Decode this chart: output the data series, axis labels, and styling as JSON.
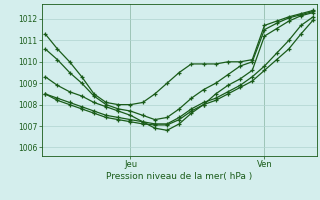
{
  "bg_color": "#d4eeed",
  "grid_color": "#b0d4d0",
  "line_color": "#1a5c1a",
  "title": "Pression niveau de la mer( hPa )",
  "ylabel_ticks": [
    1006,
    1007,
    1008,
    1009,
    1010,
    1011,
    1012
  ],
  "ylim": [
    1005.6,
    1012.7
  ],
  "xlim": [
    -0.3,
    22.3
  ],
  "xtick_positions": [
    7,
    18
  ],
  "xtick_labels": [
    "Jeu",
    "Ven"
  ],
  "n_points": 23,
  "series": [
    [
      1011.3,
      1010.6,
      1010.0,
      1009.3,
      1008.5,
      1008.1,
      1008.0,
      1008.0,
      1008.1,
      1008.5,
      1009.0,
      1009.5,
      1009.9,
      1009.9,
      1009.9,
      1010.0,
      1010.0,
      1010.1,
      1011.7,
      1011.9,
      1012.1,
      1012.25,
      1012.4
    ],
    [
      1010.6,
      1010.1,
      1009.5,
      1009.0,
      1008.4,
      1008.0,
      1007.8,
      1007.7,
      1007.5,
      1007.3,
      1007.4,
      1007.8,
      1008.3,
      1008.7,
      1009.0,
      1009.4,
      1009.8,
      1010.0,
      1011.5,
      1011.8,
      1012.05,
      1012.2,
      1012.35
    ],
    [
      1009.3,
      1008.9,
      1008.6,
      1008.4,
      1008.1,
      1007.9,
      1007.7,
      1007.5,
      1007.2,
      1006.9,
      1006.8,
      1007.1,
      1007.6,
      1008.0,
      1008.5,
      1008.9,
      1009.2,
      1009.6,
      1011.2,
      1011.55,
      1011.9,
      1012.15,
      1012.3
    ],
    [
      1008.5,
      1008.3,
      1008.1,
      1007.9,
      1007.7,
      1007.5,
      1007.4,
      1007.3,
      1007.2,
      1007.1,
      1007.1,
      1007.4,
      1007.8,
      1008.1,
      1008.3,
      1008.6,
      1008.9,
      1009.3,
      1009.8,
      1010.4,
      1011.0,
      1011.7,
      1012.1
    ],
    [
      1008.5,
      1008.2,
      1008.0,
      1007.8,
      1007.6,
      1007.4,
      1007.3,
      1007.2,
      1007.1,
      1007.05,
      1007.05,
      1007.3,
      1007.7,
      1008.0,
      1008.2,
      1008.5,
      1008.8,
      1009.1,
      1009.6,
      1010.1,
      1010.6,
      1011.3,
      1011.95
    ]
  ]
}
